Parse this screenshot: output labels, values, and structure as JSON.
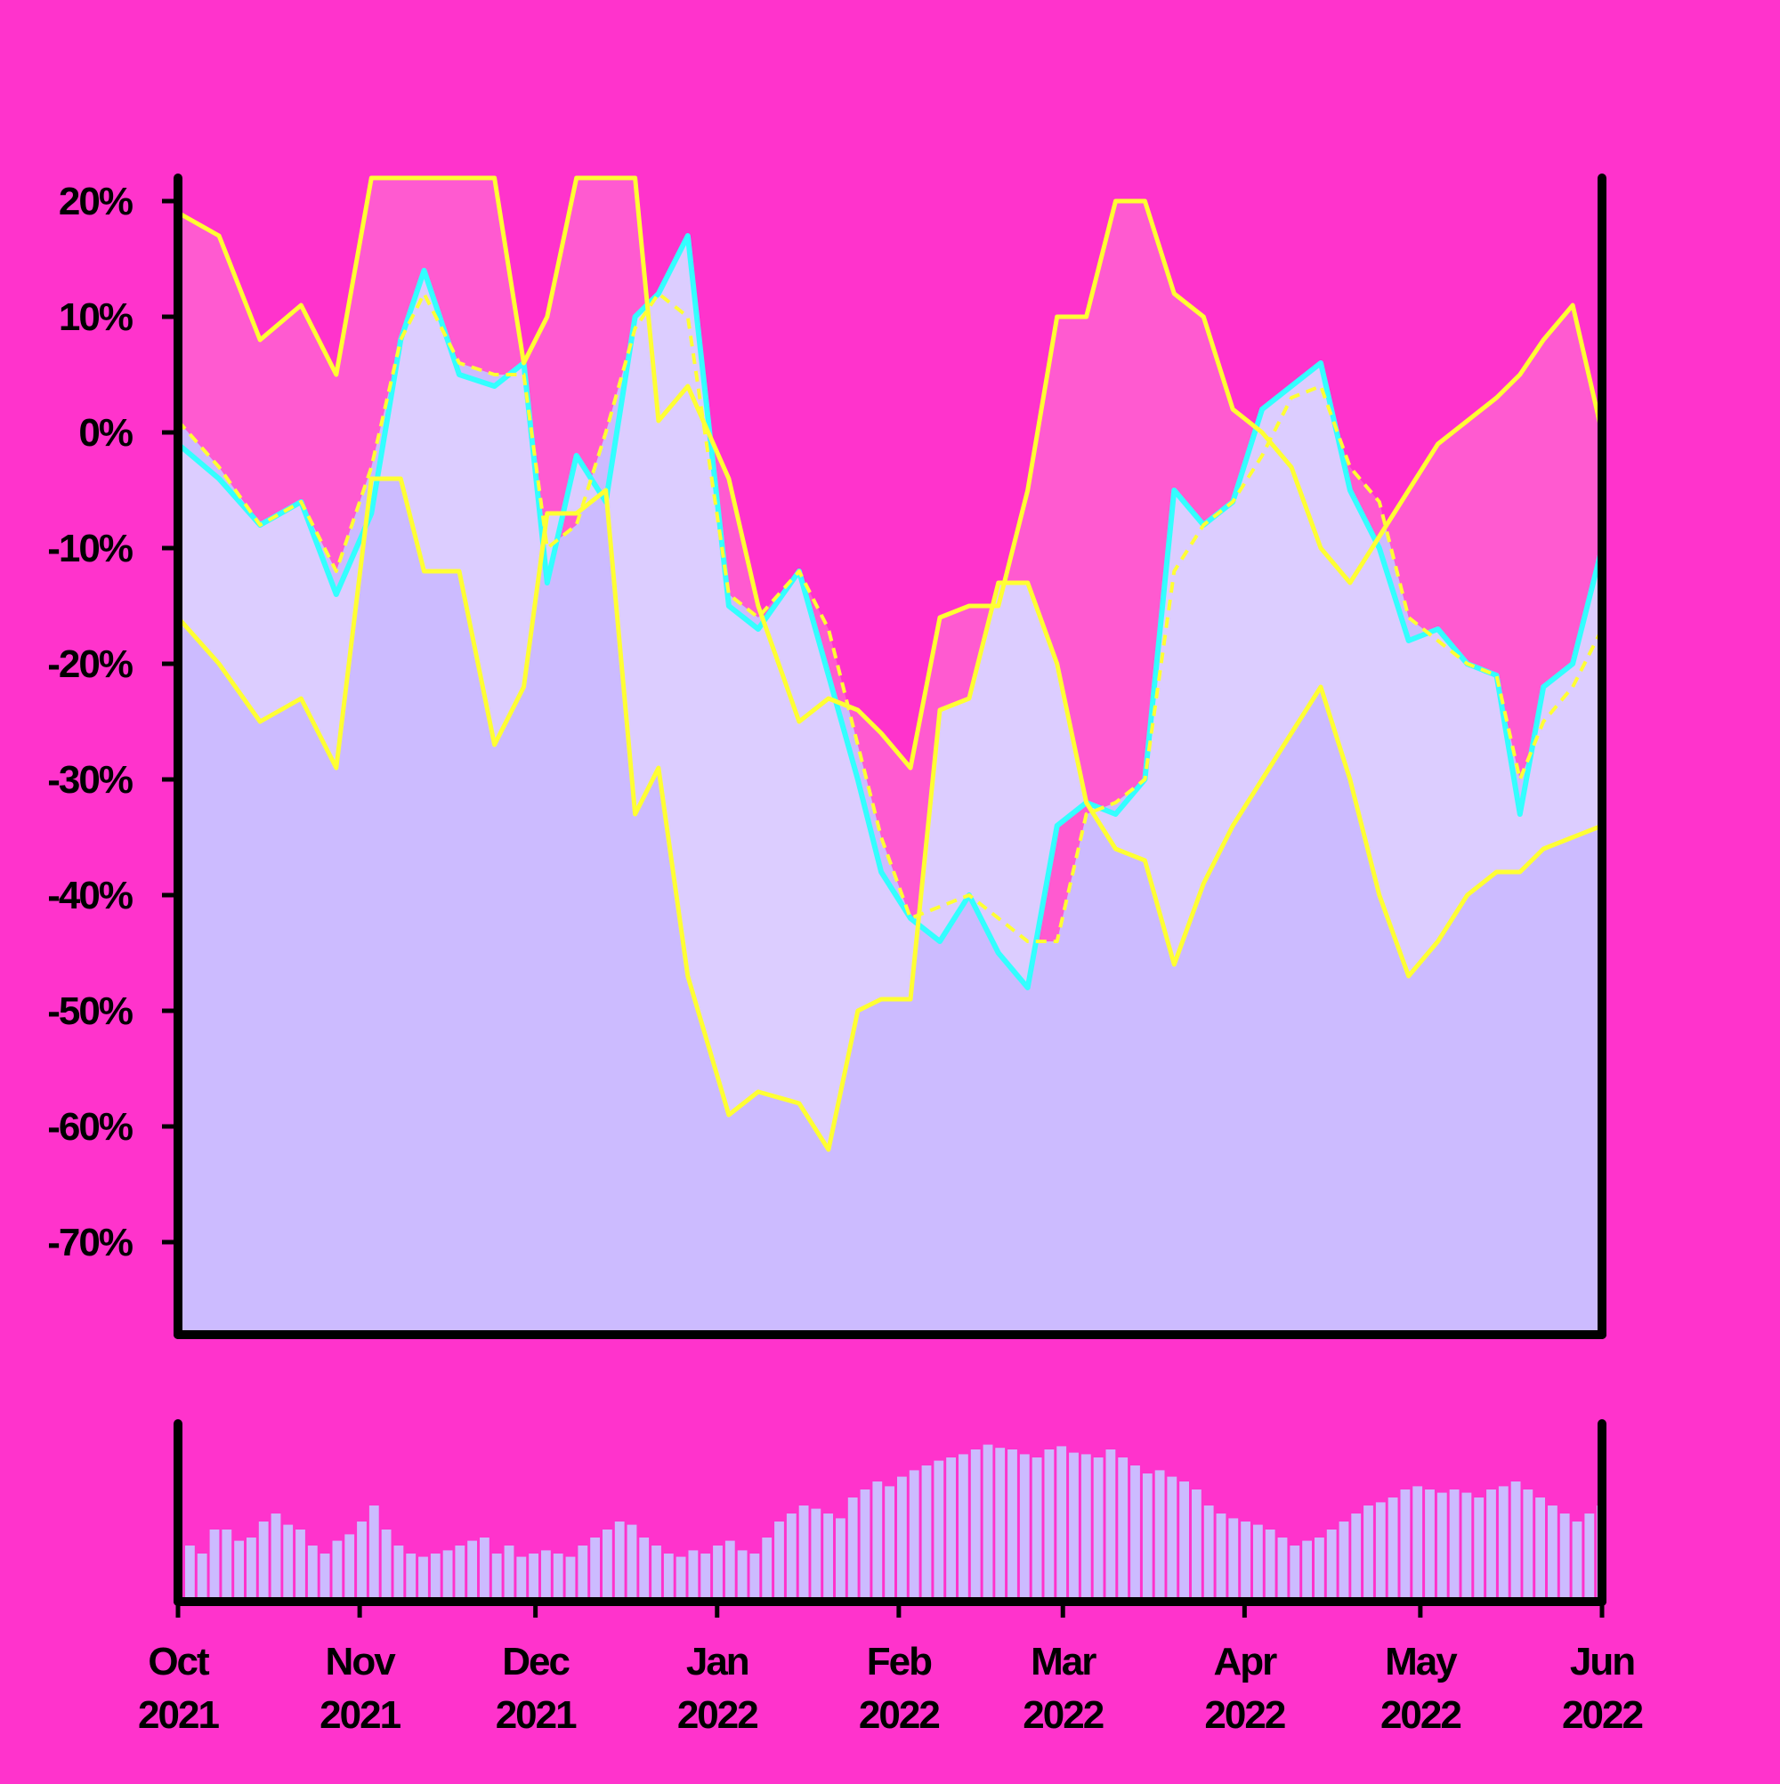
{
  "colors": {
    "background": "#ff33cc",
    "plot_fill": "#ccbbff",
    "band_inner": "#dccdff",
    "band_outer": "#ff5ad0",
    "price_line": "#33ffff",
    "band_lines": "#ffff33",
    "axis": "#000000",
    "volume_bars": "#ccbbff"
  },
  "chart_data": [
    {
      "type": "line",
      "title": "",
      "xlabel": "",
      "ylabel": "",
      "y_unit": "%",
      "x_range": [
        "2021-10-01",
        "2022-06-01"
      ],
      "ylim": [
        -78,
        22
      ],
      "y_ticks": [
        20,
        10,
        0,
        -10,
        -20,
        -30,
        -40,
        -50,
        -60,
        -70
      ],
      "y_tick_labels": [
        "20%",
        "10%",
        "0%",
        "-10%",
        "-20%",
        "-30%",
        "-40%",
        "-50%",
        "-60%",
        "-70%"
      ],
      "grid": false,
      "legend": "none",
      "series": [
        {
          "role": "price",
          "x": [
            "2021-10-01",
            "2021-10-08",
            "2021-10-15",
            "2021-10-22",
            "2021-10-28",
            "2021-11-03",
            "2021-11-08",
            "2021-11-12",
            "2021-11-18",
            "2021-11-24",
            "2021-11-29",
            "2021-12-03",
            "2021-12-08",
            "2021-12-13",
            "2021-12-18",
            "2021-12-22",
            "2021-12-27",
            "2022-01-03",
            "2022-01-08",
            "2022-01-15",
            "2022-01-20",
            "2022-01-25",
            "2022-01-29",
            "2022-02-03",
            "2022-02-08",
            "2022-02-13",
            "2022-02-18",
            "2022-02-23",
            "2022-02-28",
            "2022-03-05",
            "2022-03-10",
            "2022-03-15",
            "2022-03-20",
            "2022-03-25",
            "2022-03-30",
            "2022-04-04",
            "2022-04-09",
            "2022-04-14",
            "2022-04-19",
            "2022-04-24",
            "2022-04-29",
            "2022-05-04",
            "2022-05-09",
            "2022-05-14",
            "2022-05-18",
            "2022-05-22",
            "2022-05-27",
            "2022-06-01"
          ],
          "y": [
            -1,
            -4,
            -8,
            -6,
            -14,
            -7,
            8,
            14,
            5,
            4,
            6,
            -13,
            -2,
            -6,
            10,
            12,
            17,
            -15,
            -17,
            -12,
            -21,
            -30,
            -38,
            -42,
            -44,
            -40,
            -45,
            -48,
            -34,
            -32,
            -33,
            -30,
            -5,
            -8,
            -6,
            2,
            4,
            6,
            -5,
            -10,
            -18,
            -17,
            -20,
            -21,
            -33,
            -22,
            -20,
            -10
          ]
        },
        {
          "role": "moving-average",
          "style": "dashed",
          "x": [
            "2021-10-01",
            "2021-10-08",
            "2021-10-15",
            "2021-10-22",
            "2021-10-28",
            "2021-11-03",
            "2021-11-08",
            "2021-11-12",
            "2021-11-18",
            "2021-11-24",
            "2021-11-29",
            "2021-12-03",
            "2021-12-08",
            "2021-12-13",
            "2021-12-18",
            "2021-12-22",
            "2021-12-27",
            "2022-01-03",
            "2022-01-08",
            "2022-01-15",
            "2022-01-20",
            "2022-01-25",
            "2022-01-29",
            "2022-02-03",
            "2022-02-08",
            "2022-02-13",
            "2022-02-18",
            "2022-02-23",
            "2022-02-28",
            "2022-03-05",
            "2022-03-10",
            "2022-03-15",
            "2022-03-20",
            "2022-03-25",
            "2022-03-30",
            "2022-04-04",
            "2022-04-09",
            "2022-04-14",
            "2022-04-19",
            "2022-04-24",
            "2022-04-29",
            "2022-05-04",
            "2022-05-09",
            "2022-05-14",
            "2022-05-18",
            "2022-05-22",
            "2022-05-27",
            "2022-06-01"
          ],
          "y": [
            1,
            -3,
            -8,
            -6,
            -12,
            -3,
            8,
            12,
            6,
            5,
            5,
            -10,
            -8,
            0,
            9,
            12,
            10,
            -14,
            -16,
            -12,
            -17,
            -27,
            -35,
            -42,
            -41,
            -40,
            -42,
            -44,
            -44,
            -33,
            -32,
            -30,
            -12,
            -8,
            -6,
            -2,
            3,
            4,
            -3,
            -6,
            -16,
            -18,
            -20,
            -21,
            -30,
            -25,
            -22,
            -17
          ]
        },
        {
          "role": "upper-band",
          "x": [
            "2021-10-01",
            "2021-10-08",
            "2021-10-15",
            "2021-10-22",
            "2021-10-28",
            "2021-11-03",
            "2021-11-08",
            "2021-11-12",
            "2021-11-18",
            "2021-11-24",
            "2021-11-29",
            "2021-12-03",
            "2021-12-08",
            "2021-12-13",
            "2021-12-18",
            "2021-12-22",
            "2021-12-27",
            "2022-01-03",
            "2022-01-08",
            "2022-01-15",
            "2022-01-20",
            "2022-01-25",
            "2022-01-29",
            "2022-02-03",
            "2022-02-08",
            "2022-02-13",
            "2022-02-18",
            "2022-02-23",
            "2022-02-28",
            "2022-03-05",
            "2022-03-10",
            "2022-03-15",
            "2022-03-20",
            "2022-03-25",
            "2022-03-30",
            "2022-04-04",
            "2022-04-09",
            "2022-04-14",
            "2022-04-19",
            "2022-04-24",
            "2022-04-29",
            "2022-05-04",
            "2022-05-09",
            "2022-05-14",
            "2022-05-18",
            "2022-05-22",
            "2022-05-27",
            "2022-06-01"
          ],
          "y": [
            19,
            17,
            8,
            11,
            5,
            22,
            22,
            22,
            22,
            22,
            6,
            10,
            22,
            22,
            22,
            1,
            4,
            -4,
            -15,
            -25,
            -23,
            -24,
            -26,
            -29,
            -16,
            -15,
            -15,
            -5,
            10,
            10,
            20,
            20,
            12,
            10,
            2,
            0,
            -3,
            -10,
            -13,
            -9,
            -5,
            -1,
            1,
            3,
            5,
            8,
            11,
            0
          ]
        },
        {
          "role": "lower-band",
          "x": [
            "2021-10-01",
            "2021-10-08",
            "2021-10-15",
            "2021-10-22",
            "2021-10-28",
            "2021-11-03",
            "2021-11-08",
            "2021-11-12",
            "2021-11-18",
            "2021-11-24",
            "2021-11-29",
            "2021-12-03",
            "2021-12-08",
            "2021-12-13",
            "2021-12-18",
            "2021-12-22",
            "2021-12-27",
            "2022-01-03",
            "2022-01-08",
            "2022-01-15",
            "2022-01-20",
            "2022-01-25",
            "2022-01-29",
            "2022-02-03",
            "2022-02-08",
            "2022-02-13",
            "2022-02-18",
            "2022-02-23",
            "2022-02-28",
            "2022-03-05",
            "2022-03-10",
            "2022-03-15",
            "2022-03-20",
            "2022-03-25",
            "2022-03-30",
            "2022-04-04",
            "2022-04-09",
            "2022-04-14",
            "2022-04-19",
            "2022-04-24",
            "2022-04-29",
            "2022-05-04",
            "2022-05-09",
            "2022-05-14",
            "2022-05-18",
            "2022-05-22",
            "2022-05-27",
            "2022-06-01"
          ],
          "y": [
            -16,
            -20,
            -25,
            -23,
            -29,
            -4,
            -4,
            -12,
            -12,
            -27,
            -22,
            -7,
            -7,
            -5,
            -33,
            -29,
            -47,
            -59,
            -57,
            -58,
            -62,
            -50,
            -49,
            -49,
            -24,
            -23,
            -13,
            -13,
            -20,
            -32,
            -36,
            -37,
            -46,
            -39,
            -34,
            -30,
            -26,
            -22,
            -30,
            -40,
            -47,
            -44,
            -40,
            -38,
            -38,
            -36,
            -35,
            -34
          ]
        }
      ]
    },
    {
      "type": "bar",
      "role": "volume",
      "x_range": [
        "2021-10-01",
        "2022-06-01"
      ],
      "x_tick_labels": [
        {
          "month": "Oct",
          "year": "2021"
        },
        {
          "month": "Nov",
          "year": "2021"
        },
        {
          "month": "Dec",
          "year": "2021"
        },
        {
          "month": "Jan",
          "year": "2022"
        },
        {
          "month": "Feb",
          "year": "2022"
        },
        {
          "month": "Mar",
          "year": "2022"
        },
        {
          "month": "Apr",
          "year": "2022"
        },
        {
          "month": "May",
          "year": "2022"
        },
        {
          "month": "Jun",
          "year": "2022"
        }
      ],
      "x_tick_dates": [
        "2021-10-01",
        "2021-11-01",
        "2021-12-01",
        "2022-01-01",
        "2022-02-01",
        "2022-03-01",
        "2022-04-01",
        "2022-05-01",
        "2022-06-01"
      ],
      "values_relative": [
        0.35,
        0.3,
        0.45,
        0.45,
        0.38,
        0.4,
        0.5,
        0.55,
        0.48,
        0.45,
        0.35,
        0.3,
        0.38,
        0.42,
        0.5,
        0.6,
        0.45,
        0.35,
        0.3,
        0.28,
        0.3,
        0.32,
        0.35,
        0.38,
        0.4,
        0.3,
        0.35,
        0.28,
        0.3,
        0.32,
        0.3,
        0.28,
        0.35,
        0.4,
        0.45,
        0.5,
        0.48,
        0.4,
        0.35,
        0.3,
        0.28,
        0.32,
        0.3,
        0.35,
        0.38,
        0.32,
        0.3,
        0.4,
        0.5,
        0.55,
        0.6,
        0.58,
        0.55,
        0.52,
        0.65,
        0.7,
        0.75,
        0.72,
        0.78,
        0.82,
        0.85,
        0.88,
        0.9,
        0.92,
        0.95,
        0.98,
        0.96,
        0.95,
        0.92,
        0.9,
        0.95,
        0.97,
        0.93,
        0.92,
        0.9,
        0.95,
        0.9,
        0.85,
        0.8,
        0.82,
        0.78,
        0.75,
        0.7,
        0.6,
        0.55,
        0.52,
        0.5,
        0.48,
        0.45,
        0.4,
        0.35,
        0.38,
        0.4,
        0.45,
        0.5,
        0.55,
        0.6,
        0.62,
        0.65,
        0.7,
        0.72,
        0.7,
        0.68,
        0.7,
        0.68,
        0.65,
        0.7,
        0.72,
        0.75,
        0.7,
        0.65,
        0.6,
        0.55,
        0.5,
        0.55,
        0.6
      ]
    }
  ]
}
